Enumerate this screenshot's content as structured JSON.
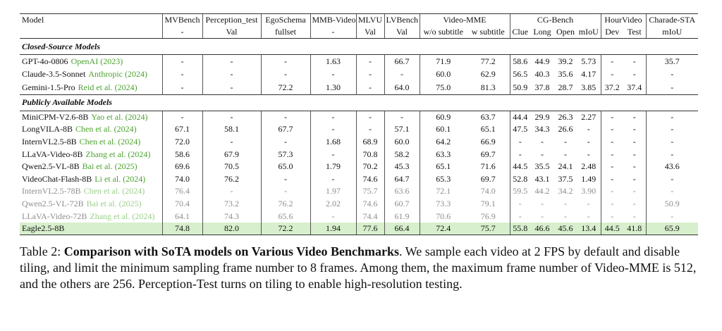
{
  "header": {
    "model": "Model",
    "groups": [
      {
        "name": "MVBench",
        "sub": [
          "-"
        ]
      },
      {
        "name": "Perception_test",
        "sub": [
          "Val"
        ]
      },
      {
        "name": "EgoSchema",
        "sub": [
          "fullset"
        ]
      },
      {
        "name": "MMB-Video",
        "sub": [
          "-"
        ]
      },
      {
        "name": "MLVU",
        "sub": [
          "Val"
        ]
      },
      {
        "name": "LVBench",
        "sub": [
          "Val"
        ]
      },
      {
        "name": "Video-MME",
        "sub": [
          "w/o subtitle",
          "w subtitle"
        ]
      },
      {
        "name": "CG-Bench",
        "sub": [
          "Clue",
          "Long",
          "Open",
          "mIoU"
        ]
      },
      {
        "name": "HourVideo",
        "sub": [
          "Dev",
          "Test"
        ]
      },
      {
        "name": "Charade-STA",
        "sub": [
          "mIoU"
        ]
      }
    ]
  },
  "sections": [
    {
      "title": "Closed-Source Models",
      "rows": [
        {
          "model": "GPT-4o-0806",
          "cite": "OpenAI (2023)",
          "cells": [
            "-",
            "-",
            "-",
            "1.63",
            "-",
            "66.7",
            "71.9",
            "77.2",
            "58.6",
            "44.9",
            "39.2",
            "5.73",
            "-",
            "-",
            "35.7"
          ]
        },
        {
          "model": "Claude-3.5-Sonnet",
          "cite": "Anthropic (2024)",
          "cells": [
            "-",
            "-",
            "-",
            "-",
            "-",
            "-",
            "60.0",
            "62.9",
            "56.5",
            "40.3",
            "35.6",
            "4.17",
            "-",
            "-",
            "-"
          ]
        },
        {
          "model": "Gemini-1.5-Pro",
          "cite": "Reid et al. (2024)",
          "cells": [
            "-",
            "-",
            "72.2",
            "1.30",
            "-",
            "64.0",
            "75.0",
            "81.3",
            "50.9",
            "37.8",
            "28.7",
            "3.85",
            "37.2",
            "37.4",
            "-"
          ]
        }
      ]
    },
    {
      "title": "Publicly Available Models",
      "rows": [
        {
          "model": "MiniCPM-V2.6-8B",
          "cite": "Yao et al. (2024)",
          "cells": [
            "-",
            "-",
            "-",
            "-",
            "-",
            "-",
            "60.9",
            "63.7",
            "44.4",
            "29.9",
            "26.3",
            "2.27",
            "-",
            "-",
            "-"
          ]
        },
        {
          "model": "LongVILA-8B",
          "cite": "Chen et al. (2024)",
          "cells": [
            "67.1",
            "58.1",
            "67.7",
            "-",
            "-",
            "57.1",
            "60.1",
            "65.1",
            "47.5",
            "34.3",
            "26.6",
            "-",
            "-",
            "-",
            "-"
          ]
        },
        {
          "model": "InternVL2.5-8B",
          "cite": "Chen et al. (2024)",
          "cells": [
            "72.0",
            "-",
            "-",
            "1.68",
            "68.9",
            "60.0",
            "64.2",
            "66.9",
            "-",
            "-",
            "-",
            "-",
            "-",
            "-",
            "-"
          ]
        },
        {
          "model": "LLaVA-Video-8B",
          "cite": "Zhang et al. (2024)",
          "cells": [
            "58.6",
            "67.9",
            "57.3",
            "-",
            "70.8",
            "58.2",
            "63.3",
            "69.7",
            "-",
            "-",
            "-",
            "-",
            "-",
            "-",
            "-"
          ]
        },
        {
          "model": "Qwen2.5-VL-8B",
          "cite": "Bai et al. (2025)",
          "cells": [
            "69.6",
            "70.5",
            "65.0",
            "1.79",
            "70.2",
            "45.3",
            "65.1",
            "71.6",
            "44.5",
            "35.5",
            "24.1",
            "2.48",
            "-",
            "-",
            "43.6"
          ]
        },
        {
          "model": "VideoChat-Flash-8B",
          "cite": "Li et al. (2024)",
          "cells": [
            "74.0",
            "76.2",
            "-",
            "-",
            "74.6",
            "64.7",
            "65.3",
            "69.7",
            "52.8",
            "43.1",
            "37.5",
            "1.49",
            "-",
            "-",
            "-"
          ]
        },
        {
          "model": "InternVL2.5-78B",
          "cite": "Chen et al. (2024)",
          "color": "#8e8e8e",
          "cite_color": "#9ccf8a",
          "cells": [
            "76.4",
            "-",
            "-",
            "1.97",
            "75.7",
            "63.6",
            "72.1",
            "74.0",
            "59.5",
            "44.2",
            "34.2",
            "3.90",
            "-",
            "-",
            "-"
          ]
        },
        {
          "model": "Qwen2.5-VL-72B",
          "cite": "Bai et al. (2025)",
          "color": "#8e8e8e",
          "cite_color": "#9ccf8a",
          "cells": [
            "70.4",
            "73.2",
            "76.2",
            "2.02",
            "74.6",
            "60.7",
            "73.3",
            "79.1",
            "-",
            "-",
            "-",
            "-",
            "-",
            "-",
            "50.9"
          ]
        },
        {
          "model": "LLaVA-Video-72B",
          "cite": "Zhang et al. (2024)",
          "color": "#8e8e8e",
          "cite_color": "#9ccf8a",
          "cells": [
            "64.1",
            "74.3",
            "65.6",
            "-",
            "74.4",
            "61.9",
            "70.6",
            "76.9",
            "-",
            "-",
            "-",
            "-",
            "-",
            "-",
            "-"
          ]
        },
        {
          "model": "Eagle2.5-8B",
          "background": "#d7efcc",
          "cells": [
            "74.8",
            "82.0",
            "72.2",
            "1.94",
            "77.6",
            "66.4",
            "72.4",
            "75.7",
            "55.8",
            "46.6",
            "45.6",
            "13.4",
            "44.5",
            "41.8",
            "65.9"
          ]
        }
      ]
    }
  ],
  "caption": {
    "label": "Table 2:",
    "title": "Comparison with SoTA models on Various Video Benchmarks",
    "text": ". We sample each video at 2 FPS by default and disable tiling, and limit the minimum sampling frame number to 8 frames. Among them, the maximum frame number of Video-MME is 512, and the others are 256. Perception-Test turns on tiling to enable high-resolution testing."
  }
}
